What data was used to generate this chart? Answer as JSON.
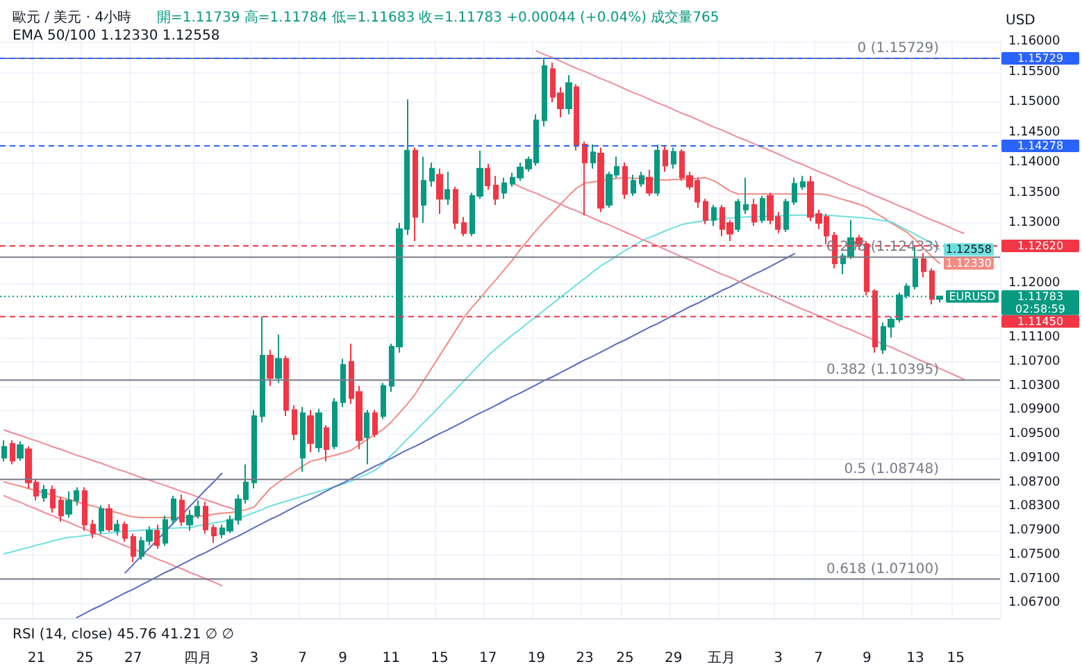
{
  "chart_data": {
    "type": "candlestick",
    "title": "歐元 / 美元 · 4小時",
    "subtitle": "開=1.11739 高=1.11784 低=1.11683 收=1.11783 +0.00044 (+0.04%) 成交量765",
    "ylabel": "USD",
    "annotations": [
      "EMA 50/100 1.12330 1.12558",
      "RSI (14, close) 45.76 41.21 ∅ ∅",
      {
        "text": "EURUSD",
        "y": 1.11783
      }
    ],
    "categories": [
      null,
      null,
      null,
      null,
      "21",
      null,
      null,
      null,
      null,
      null,
      "25",
      null,
      null,
      null,
      null,
      null,
      "27",
      null,
      null,
      null,
      null,
      null,
      null,
      null,
      "四月",
      null,
      null,
      null,
      null,
      null,
      null,
      "3",
      null,
      null,
      null,
      null,
      null,
      "7",
      null,
      null,
      null,
      null,
      "9",
      null,
      null,
      null,
      null,
      null,
      "11",
      null,
      null,
      null,
      null,
      null,
      "15",
      null,
      null,
      null,
      null,
      null,
      "17",
      null,
      null,
      null,
      null,
      null,
      "19",
      null,
      null,
      null,
      null,
      null,
      "23",
      null,
      null,
      null,
      null,
      "25",
      null,
      null,
      null,
      null,
      null,
      "29",
      null,
      null,
      null,
      null,
      null,
      "五月",
      null,
      null,
      null,
      null,
      null,
      null,
      "3",
      null,
      null,
      null,
      null,
      "7",
      null,
      null,
      null,
      null,
      null,
      "9",
      null,
      null,
      null,
      null,
      null,
      "13",
      null,
      null,
      null,
      null,
      "15",
      null,
      null,
      null,
      null,
      null
    ],
    "ohlc": [
      [
        1.0911,
        1.094,
        1.0905,
        1.0929
      ],
      [
        1.0934,
        1.094,
        1.09,
        1.0906
      ],
      [
        1.0911,
        1.0938,
        1.0906,
        1.0932
      ],
      [
        1.0925,
        1.093,
        1.086,
        1.087
      ],
      [
        1.087,
        1.0876,
        1.084,
        1.0848
      ],
      [
        1.0845,
        1.0866,
        1.0838,
        1.0858
      ],
      [
        1.0858,
        1.0865,
        1.082,
        1.0828
      ],
      [
        1.084,
        1.0846,
        1.0805,
        1.0815
      ],
      [
        1.0818,
        1.0855,
        1.0812,
        1.084
      ],
      [
        1.084,
        1.0862,
        1.0832,
        1.0856
      ],
      [
        1.0856,
        1.0862,
        1.079,
        1.08
      ],
      [
        1.08,
        1.0808,
        1.0778,
        1.0786
      ],
      [
        1.079,
        1.0832,
        1.0785,
        1.0826
      ],
      [
        1.0826,
        1.0834,
        1.0788,
        1.0792
      ],
      [
        1.079,
        1.0808,
        1.0782,
        1.08
      ],
      [
        1.08,
        1.0805,
        1.0772,
        1.0778
      ],
      [
        1.078,
        1.0785,
        1.0738,
        1.0748
      ],
      [
        1.0748,
        1.078,
        1.0742,
        1.0773
      ],
      [
        1.0773,
        1.0797,
        1.0766,
        1.079
      ],
      [
        1.079,
        1.08,
        1.076,
        1.0766
      ],
      [
        1.077,
        1.0815,
        1.0765,
        1.0808
      ],
      [
        1.0808,
        1.0848,
        1.08,
        1.0842
      ],
      [
        1.084,
        1.085,
        1.0798,
        1.0805
      ],
      [
        1.08,
        1.0825,
        1.079,
        1.0815
      ],
      [
        1.0815,
        1.084,
        1.081,
        1.083
      ],
      [
        1.083,
        1.0838,
        1.0785,
        1.0792
      ],
      [
        1.0795,
        1.08,
        1.077,
        1.0782
      ],
      [
        1.0784,
        1.08,
        1.0778,
        1.0794
      ],
      [
        1.079,
        1.0815,
        1.0786,
        1.0808
      ],
      [
        1.0808,
        1.085,
        1.08,
        1.0842
      ],
      [
        1.0842,
        1.09,
        1.0835,
        1.087
      ],
      [
        1.087,
        1.099,
        1.086,
        1.098
      ],
      [
        1.098,
        1.1145,
        1.097,
        1.108
      ],
      [
        1.108,
        1.109,
        1.103,
        1.1043
      ],
      [
        1.1043,
        1.1115,
        1.1035,
        1.1075
      ],
      [
        1.1075,
        1.108,
        1.098,
        1.099
      ],
      [
        1.099,
        1.0998,
        1.094,
        1.095
      ],
      [
        1.0911,
        1.0995,
        1.0888,
        1.0985
      ],
      [
        1.098,
        1.099,
        1.092,
        1.0935
      ],
      [
        1.0928,
        1.0992,
        1.092,
        1.0985
      ],
      [
        1.096,
        1.0965,
        1.0905,
        1.0925
      ],
      [
        1.093,
        1.101,
        1.0925,
        1.1003
      ],
      [
        1.1003,
        1.1075,
        1.0995,
        1.1065
      ],
      [
        1.107,
        1.11,
        1.1,
        1.101
      ],
      [
        1.102,
        1.103,
        1.0925,
        1.094
      ],
      [
        1.0945,
        1.099,
        1.09,
        1.0985
      ],
      [
        1.0985,
        1.099,
        1.0945,
        1.095
      ],
      [
        1.098,
        1.1035,
        1.0975,
        1.103
      ],
      [
        1.103,
        1.11,
        1.102,
        1.1095
      ],
      [
        1.1095,
        1.13,
        1.1085,
        1.129
      ],
      [
        1.129,
        1.1505,
        1.128,
        1.142
      ],
      [
        1.142,
        1.1425,
        1.127,
        1.131
      ],
      [
        1.133,
        1.141,
        1.13,
        1.137
      ],
      [
        1.137,
        1.14,
        1.136,
        1.139
      ],
      [
        1.138,
        1.139,
        1.1315,
        1.134
      ],
      [
        1.134,
        1.1385,
        1.133,
        1.1355
      ],
      [
        1.1355,
        1.136,
        1.129,
        1.13
      ],
      [
        1.13,
        1.131,
        1.1278,
        1.1283
      ],
      [
        1.1283,
        1.135,
        1.1278,
        1.1345
      ],
      [
        1.1345,
        1.142,
        1.134,
        1.139
      ],
      [
        1.139,
        1.1398,
        1.1355,
        1.1362
      ],
      [
        1.1362,
        1.1378,
        1.133,
        1.134
      ],
      [
        1.135,
        1.1375,
        1.134,
        1.1366
      ],
      [
        1.1365,
        1.1383,
        1.136,
        1.1375
      ],
      [
        1.1375,
        1.14,
        1.137,
        1.1392
      ],
      [
        1.139,
        1.141,
        1.1385,
        1.1405
      ],
      [
        1.14,
        1.148,
        1.1395,
        1.147
      ],
      [
        1.147,
        1.1573,
        1.146,
        1.156
      ],
      [
        1.1555,
        1.1566,
        1.15,
        1.1509
      ],
      [
        1.1515,
        1.1525,
        1.1475,
        1.149
      ],
      [
        1.149,
        1.1545,
        1.148,
        1.1532
      ],
      [
        1.1525,
        1.153,
        1.142,
        1.143
      ],
      [
        1.143,
        1.1435,
        1.1313,
        1.14
      ],
      [
        1.14,
        1.143,
        1.139,
        1.1417
      ],
      [
        1.1415,
        1.1425,
        1.1318,
        1.1325
      ],
      [
        1.133,
        1.1385,
        1.1325,
        1.138
      ],
      [
        1.138,
        1.141,
        1.1375,
        1.1393
      ],
      [
        1.1393,
        1.14,
        1.134,
        1.1348
      ],
      [
        1.135,
        1.138,
        1.1345,
        1.137
      ],
      [
        1.1365,
        1.1385,
        1.136,
        1.1378
      ],
      [
        1.1375,
        1.1388,
        1.1345,
        1.135
      ],
      [
        1.135,
        1.143,
        1.1345,
        1.142
      ],
      [
        1.142,
        1.1428,
        1.1385,
        1.1395
      ],
      [
        1.1398,
        1.1425,
        1.139,
        1.1418
      ],
      [
        1.1418,
        1.1422,
        1.137,
        1.1375
      ],
      [
        1.1378,
        1.1385,
        1.1355,
        1.136
      ],
      [
        1.137,
        1.1375,
        1.1325,
        1.1335
      ],
      [
        1.1335,
        1.134,
        1.1298,
        1.1305
      ],
      [
        1.1305,
        1.133,
        1.1295,
        1.1325
      ],
      [
        1.1325,
        1.133,
        1.1278,
        1.129
      ],
      [
        1.13,
        1.1305,
        1.127,
        1.1282
      ],
      [
        1.129,
        1.134,
        1.1285,
        1.1335
      ],
      [
        1.1322,
        1.1375,
        1.1315,
        1.133
      ],
      [
        1.133,
        1.134,
        1.1295,
        1.1302
      ],
      [
        1.1305,
        1.1345,
        1.13,
        1.134
      ],
      [
        1.1345,
        1.135,
        1.1298,
        1.1305
      ],
      [
        1.131,
        1.1318,
        1.1283,
        1.129
      ],
      [
        1.129,
        1.134,
        1.1285,
        1.1335
      ],
      [
        1.1335,
        1.1375,
        1.133,
        1.1365
      ],
      [
        1.136,
        1.1378,
        1.1355,
        1.1368
      ],
      [
        1.1368,
        1.1378,
        1.1303,
        1.131
      ],
      [
        1.1315,
        1.1322,
        1.129,
        1.13
      ],
      [
        1.131,
        1.1315,
        1.1265,
        1.1279
      ],
      [
        1.1279,
        1.1285,
        1.1225,
        1.1233
      ],
      [
        1.1233,
        1.125,
        1.1215,
        1.1245
      ],
      [
        1.1245,
        1.1305,
        1.124,
        1.1275
      ],
      [
        1.1275,
        1.128,
        1.1255,
        1.1265
      ],
      [
        1.1265,
        1.127,
        1.118,
        1.1187
      ],
      [
        1.1187,
        1.119,
        1.1085,
        1.1095
      ],
      [
        1.109,
        1.1135,
        1.1083,
        1.1128
      ],
      [
        1.1128,
        1.1145,
        1.111,
        1.114
      ],
      [
        1.114,
        1.1185,
        1.1135,
        1.118
      ],
      [
        1.118,
        1.12,
        1.1175,
        1.1195
      ],
      [
        1.1195,
        1.1262,
        1.119,
        1.124
      ],
      [
        1.124,
        1.125,
        1.121,
        1.122
      ],
      [
        1.122,
        1.1225,
        1.1165,
        1.1174
      ],
      [
        1.11739,
        1.11784,
        1.11683,
        1.11783
      ],
      null,
      null,
      null,
      null,
      null,
      null,
      null
    ],
    "colors": [
      "#089981",
      "#f23645",
      "#089981",
      "#f23645",
      "#f23645",
      "#089981",
      "#f23645",
      "#f23645",
      "#089981",
      "#089981",
      "#f23645",
      "#f23645",
      "#089981",
      "#f23645",
      "#089981",
      "#f23645",
      "#f23645",
      "#089981",
      "#089981",
      "#f23645",
      "#089981",
      "#089981",
      "#f23645",
      "#089981",
      "#089981",
      "#f23645",
      "#f23645",
      "#089981",
      "#089981",
      "#089981",
      "#089981",
      "#089981",
      "#089981",
      "#f23645",
      "#089981",
      "#f23645",
      "#f23645",
      "#089981",
      "#f23645",
      "#089981",
      "#f23645",
      "#089981",
      "#089981",
      "#f23645",
      "#f23645",
      "#089981",
      "#f23645",
      "#089981",
      "#089981",
      "#089981",
      "#089981",
      "#f23645",
      "#089981",
      "#089981",
      "#f23645",
      "#089981",
      "#f23645",
      "#f23645",
      "#089981",
      "#089981",
      "#f23645",
      "#f23645",
      "#089981",
      "#089981",
      "#089981",
      "#089981",
      "#089981",
      "#089981",
      "#f23645",
      "#f23645",
      "#089981",
      "#f23645",
      "#f23645",
      "#089981",
      "#f23645",
      "#089981",
      "#089981",
      "#f23645",
      "#089981",
      "#089981",
      "#f23645",
      "#089981",
      "#f23645",
      "#089981",
      "#f23645",
      "#f23645",
      "#f23645",
      "#f23645",
      "#089981",
      "#f23645",
      "#f23645",
      "#089981",
      "#089981",
      "#f23645",
      "#089981",
      "#f23645",
      "#f23645",
      "#089981",
      "#089981",
      "#089981",
      "#f23645",
      "#f23645",
      "#f23645",
      "#f23645",
      "#089981",
      "#089981",
      "#f23645",
      "#f23645",
      "#f23645",
      "#089981",
      "#089981",
      "#089981",
      "#089981",
      "#089981",
      "#f23645",
      "#f23645",
      "#089981",
      null,
      null,
      null,
      null,
      null,
      null,
      null
    ],
    "series": [
      {
        "type": "line",
        "color": "#f28b82",
        "values": [
          1.0871,
          1.0867,
          1.0864,
          1.086,
          1.0856,
          1.0853,
          1.0849,
          1.0845,
          1.0842,
          1.0838,
          1.0834,
          1.0831,
          1.0827,
          1.0823,
          1.082,
          1.0816,
          1.0813,
          1.0812,
          1.0812,
          1.0812,
          1.0812,
          1.0812,
          1.0812,
          1.0812,
          1.0814,
          1.0815,
          1.0817,
          1.0819,
          1.082,
          1.0822,
          1.0825,
          1.0829,
          1.0845,
          1.086,
          1.087,
          1.0879,
          1.0888,
          1.0897,
          1.0905,
          1.0908,
          1.0912,
          1.0915,
          1.0919,
          1.0923,
          1.0932,
          1.0941,
          1.095,
          1.0958,
          1.097,
          1.0985,
          1.1,
          1.1017,
          1.1038,
          1.1059,
          1.108,
          1.1101,
          1.1122,
          1.1143,
          1.116,
          1.1175,
          1.1191,
          1.1206,
          1.1222,
          1.1238,
          1.1256,
          1.1272,
          1.1288,
          1.1303,
          1.1317,
          1.1331,
          1.1345,
          1.1358,
          1.1366,
          1.1368,
          1.137,
          1.1372,
          1.1374,
          1.1375,
          1.1374,
          1.1374,
          1.1373,
          1.1372,
          1.1371,
          1.1372,
          1.1372,
          1.1373,
          1.1374,
          1.1375,
          1.137,
          1.1362,
          1.1353,
          1.1348,
          1.1348,
          1.1348,
          1.1348,
          1.1348,
          1.1348,
          1.1348,
          1.1348,
          1.1348,
          1.1348,
          1.1348,
          1.1347,
          1.1343,
          1.1339,
          1.1335,
          1.1331,
          1.1326,
          1.1317,
          1.1309,
          1.13,
          1.1292,
          1.1284,
          1.1272,
          1.1258,
          1.1245,
          1.1233,
          null,
          null,
          null,
          null,
          null,
          null,
          null
        ],
        "value_labels": [
          null,
          null,
          null,
          null,
          null,
          null,
          null,
          null,
          null,
          null,
          null,
          null,
          null,
          null,
          null,
          null,
          null,
          null,
          null,
          null,
          null,
          null,
          null,
          null,
          null,
          null,
          null,
          null,
          null,
          null,
          null,
          null,
          null,
          null,
          null,
          null,
          null,
          null,
          null,
          null,
          null,
          null,
          null,
          null,
          null,
          null,
          null,
          null,
          null,
          null,
          null,
          null,
          null,
          null,
          null,
          null,
          null,
          null,
          null,
          null,
          null,
          null,
          null,
          null,
          null,
          null,
          null,
          null,
          null,
          null,
          null,
          null,
          null,
          null,
          null,
          null,
          null,
          null,
          null,
          null,
          null,
          null,
          null,
          null,
          null,
          null,
          null,
          null,
          null,
          null,
          null,
          null,
          null,
          null,
          null,
          null,
          null,
          null,
          null,
          null,
          null,
          null,
          null,
          null,
          null,
          null,
          null,
          null,
          null,
          null,
          null,
          null,
          null,
          null,
          null,
          null,
          "1.12330",
          null,
          null,
          null,
          null,
          null,
          null,
          null
        ]
      },
      {
        "type": "line",
        "color": "#6fe0e0",
        "values": [
          1.0752,
          1.0755,
          1.0759,
          1.0762,
          1.0766,
          1.0769,
          1.0773,
          1.0776,
          1.0779,
          1.078,
          1.0782,
          1.0783,
          1.0785,
          1.0786,
          1.0788,
          1.0789,
          1.079,
          1.0791,
          1.0792,
          1.0793,
          1.0794,
          1.0794,
          1.0795,
          1.0795,
          1.0798,
          1.08,
          1.0803,
          1.0805,
          1.0808,
          1.0811,
          1.0815,
          1.082,
          1.0825,
          1.0831,
          1.0835,
          1.0839,
          1.0843,
          1.0847,
          1.0851,
          1.0855,
          1.0859,
          1.0863,
          1.0867,
          1.0872,
          1.0878,
          1.0884,
          1.089,
          1.0901,
          1.0915,
          1.0928,
          1.0942,
          1.0955,
          1.0969,
          1.0982,
          1.0996,
          1.101,
          1.1024,
          1.1038,
          1.1052,
          1.1066,
          1.108,
          1.1092,
          1.1103,
          1.1114,
          1.1124,
          1.1135,
          1.1145,
          1.1156,
          1.1166,
          1.1177,
          1.1187,
          1.1198,
          1.1208,
          1.1219,
          1.1229,
          1.1237,
          1.1246,
          1.1254,
          1.1262,
          1.127,
          1.1276,
          1.1281,
          1.1287,
          1.1292,
          1.1297,
          1.13,
          1.1302,
          1.1304,
          1.1306,
          1.1307,
          1.1308,
          1.1309,
          1.131,
          1.131,
          1.1311,
          1.1311,
          1.1312,
          1.1312,
          1.1313,
          1.1313,
          1.1313,
          1.1313,
          1.1313,
          1.1312,
          1.1311,
          1.131,
          1.1309,
          1.1308,
          1.1306,
          1.1304,
          1.1302,
          1.1295,
          1.1288,
          1.1281,
          1.1274,
          1.1266,
          1.12558,
          null,
          null,
          null,
          null,
          null,
          null,
          null
        ],
        "value_labels": [
          null,
          null,
          null,
          null,
          null,
          null,
          null,
          null,
          null,
          null,
          null,
          null,
          null,
          null,
          null,
          null,
          null,
          null,
          null,
          null,
          null,
          null,
          null,
          null,
          null,
          null,
          null,
          null,
          null,
          null,
          null,
          null,
          null,
          null,
          null,
          null,
          null,
          null,
          null,
          null,
          null,
          null,
          null,
          null,
          null,
          null,
          null,
          null,
          null,
          null,
          null,
          null,
          null,
          null,
          null,
          null,
          null,
          null,
          null,
          null,
          null,
          null,
          null,
          null,
          null,
          null,
          null,
          null,
          null,
          null,
          null,
          null,
          null,
          null,
          null,
          null,
          null,
          null,
          null,
          null,
          null,
          null,
          null,
          null,
          null,
          null,
          null,
          null,
          null,
          null,
          null,
          null,
          null,
          null,
          null,
          null,
          null,
          null,
          null,
          null,
          null,
          null,
          null,
          null,
          null,
          null,
          null,
          null,
          null,
          null,
          null,
          null,
          null,
          null,
          null,
          null,
          "1.12558",
          null,
          null,
          null,
          null,
          null,
          null,
          null
        ]
      },
      {
        "type": "line",
        "color": "#ef8a9a",
        "values": [
          1.0957,
          1.0952,
          1.0948,
          1.0943,
          1.0939,
          1.0934,
          1.0929,
          1.0925,
          1.092,
          1.0915,
          1.0911,
          1.0906,
          1.0902,
          1.0897,
          1.0892,
          1.0888,
          1.0883,
          1.0878,
          1.0874,
          1.0869,
          1.0865,
          1.086,
          1.0855,
          1.0851,
          1.0846,
          1.0841,
          1.0837,
          1.0832,
          1.0828,
          1.0823,
          null,
          null,
          null,
          null,
          null,
          null,
          null,
          null,
          null,
          null,
          null,
          null,
          null,
          null,
          null,
          null,
          null,
          null,
          null,
          null,
          null,
          null,
          null,
          null,
          null,
          null,
          null,
          null,
          null,
          null,
          null,
          null,
          null,
          null,
          null,
          null,
          null,
          null,
          null,
          null,
          null,
          null,
          null,
          null,
          null,
          null,
          null,
          null,
          null,
          null,
          null,
          null,
          null,
          null,
          null,
          null,
          null,
          null,
          null,
          null,
          null,
          null,
          null,
          null,
          null,
          null,
          null,
          null,
          null,
          null,
          null,
          null,
          null,
          null,
          null,
          null,
          null,
          null,
          null,
          null,
          null,
          null,
          null,
          null,
          null,
          null,
          null,
          null,
          null,
          null,
          null,
          null,
          null,
          null
        ]
      },
      {
        "type": "line",
        "color": "#ef8a9a",
        "values": [
          1.0848,
          1.0842,
          1.0837,
          1.0831,
          1.0826,
          1.082,
          1.0815,
          1.0809,
          1.0804,
          1.0798,
          1.0793,
          1.0787,
          1.0782,
          1.0776,
          1.0771,
          1.0765,
          1.076,
          1.0754,
          1.0749,
          1.0743,
          1.0738,
          1.0732,
          1.0727,
          1.0721,
          1.0716,
          1.071,
          1.0705,
          1.0699,
          null,
          null,
          null,
          null,
          null,
          null,
          null,
          null,
          null,
          null,
          null,
          null,
          null,
          null,
          null,
          null,
          null,
          null,
          null,
          null,
          null,
          null,
          null,
          null,
          null,
          null,
          null,
          null,
          null,
          null,
          null,
          null,
          null,
          null,
          null,
          null,
          null,
          null,
          null,
          null,
          null,
          null,
          null,
          null,
          null,
          null,
          null,
          null,
          null,
          null,
          null,
          null,
          null,
          null,
          null,
          null,
          null,
          null,
          null,
          null,
          null,
          null,
          null,
          null,
          null,
          null,
          null,
          null,
          null,
          null,
          null,
          null,
          null,
          null,
          null,
          null,
          null,
          null,
          null,
          null,
          null,
          null,
          null,
          null,
          null,
          null,
          null,
          null,
          null,
          null,
          null,
          null,
          null,
          null,
          null,
          null
        ]
      },
      {
        "type": "line",
        "color": "#5c6bc0",
        "values": [
          null,
          null,
          null,
          null,
          null,
          null,
          null,
          null,
          null,
          null,
          null,
          null,
          null,
          null,
          null,
          1.072,
          1.0734,
          1.0748,
          1.0761,
          1.0775,
          1.0789,
          1.0803,
          1.0816,
          1.083,
          1.0844,
          1.0858,
          1.0871,
          1.0885,
          null,
          null,
          null,
          null,
          null,
          null,
          null,
          null,
          null,
          null,
          null,
          null,
          null,
          null,
          null,
          null,
          null,
          null,
          null,
          null,
          null,
          null,
          null,
          null,
          null,
          null,
          null,
          null,
          null,
          null,
          null,
          null,
          null,
          null,
          null,
          null,
          null,
          null,
          null,
          null,
          null,
          null,
          null,
          null,
          null,
          null,
          null,
          null,
          null,
          null,
          null,
          null,
          null,
          null,
          null,
          null,
          null,
          null,
          null,
          null,
          null,
          null,
          null,
          null,
          null,
          null,
          null,
          null,
          null,
          null,
          null,
          null,
          null,
          null,
          null,
          null,
          null,
          null,
          null,
          null,
          null,
          null,
          null,
          null,
          null,
          null,
          null,
          null,
          null,
          null,
          null,
          null,
          null,
          null,
          null,
          null
        ]
      },
      {
        "type": "line",
        "color": "#5c6bc0",
        "values": [
          null,
          null,
          null,
          null,
          null,
          null,
          null,
          null,
          null,
          1.0646,
          1.0653,
          1.066,
          1.0666,
          1.0673,
          1.068,
          1.0687,
          1.0693,
          1.07,
          1.0707,
          1.0714,
          1.0721,
          1.0727,
          1.0734,
          1.0741,
          1.0748,
          1.0754,
          1.0761,
          1.0768,
          1.0775,
          1.0781,
          1.0788,
          1.0795,
          1.0802,
          1.0809,
          1.0815,
          1.0822,
          1.0829,
          1.0836,
          1.0842,
          1.0849,
          1.0856,
          1.0863,
          1.0869,
          1.0876,
          1.0883,
          1.089,
          1.0897,
          1.0903,
          1.091,
          1.0917,
          1.0924,
          1.093,
          1.0937,
          1.0944,
          1.0951,
          1.0957,
          1.0964,
          1.0971,
          1.0978,
          1.0985,
          1.0991,
          1.0998,
          1.1005,
          1.1012,
          1.1018,
          1.1025,
          1.1032,
          1.1039,
          1.1045,
          1.1052,
          1.1059,
          1.1066,
          1.1073,
          1.1079,
          1.1086,
          1.1093,
          1.11,
          1.1106,
          1.1113,
          1.112,
          1.1127,
          1.1133,
          1.114,
          1.1147,
          1.1154,
          1.1161,
          1.1167,
          1.1174,
          1.1181,
          1.1188,
          1.1194,
          1.1201,
          1.1208,
          1.1215,
          1.1221,
          1.1228,
          1.1235,
          1.1242,
          1.1249,
          null,
          null,
          null,
          null,
          null,
          null,
          null,
          null,
          null,
          null,
          null,
          null,
          null,
          null,
          null,
          null,
          null,
          null,
          null,
          null,
          null,
          null,
          null,
          null,
          null
        ]
      },
      {
        "type": "line",
        "color": "#ef8a9a",
        "values": [
          null,
          null,
          null,
          null,
          null,
          null,
          null,
          null,
          null,
          null,
          null,
          null,
          null,
          null,
          null,
          null,
          null,
          null,
          null,
          null,
          null,
          null,
          null,
          null,
          null,
          null,
          null,
          null,
          null,
          null,
          null,
          null,
          null,
          null,
          null,
          null,
          null,
          null,
          null,
          null,
          null,
          null,
          null,
          null,
          null,
          null,
          null,
          null,
          null,
          null,
          null,
          null,
          null,
          null,
          null,
          null,
          null,
          null,
          null,
          null,
          null,
          null,
          null,
          null,
          null,
          null,
          1.1585,
          1.1579,
          1.1574,
          1.1568,
          1.1562,
          1.1556,
          1.1551,
          1.1545,
          1.1539,
          1.1534,
          1.1528,
          1.1522,
          1.1516,
          1.1511,
          1.1505,
          1.1499,
          1.1494,
          1.1488,
          1.1482,
          1.1477,
          1.1471,
          1.1465,
          1.1459,
          1.1454,
          1.1448,
          1.1442,
          1.1437,
          1.1431,
          1.1425,
          1.142,
          1.1414,
          1.1408,
          1.1402,
          1.1397,
          1.1391,
          1.1385,
          1.138,
          1.1374,
          1.1368,
          1.1362,
          1.1357,
          1.1351,
          1.1345,
          1.134,
          1.1334,
          1.1328,
          1.1323,
          1.1317,
          1.1311,
          1.1305,
          1.13,
          1.1294,
          1.1288,
          1.1283,
          null,
          null,
          null,
          null
        ]
      },
      {
        "type": "line",
        "color": "#ef8a9a",
        "values": [
          null,
          null,
          null,
          null,
          null,
          null,
          null,
          null,
          null,
          null,
          null,
          null,
          null,
          null,
          null,
          null,
          null,
          null,
          null,
          null,
          null,
          null,
          null,
          null,
          null,
          null,
          null,
          null,
          null,
          null,
          null,
          null,
          null,
          null,
          null,
          null,
          null,
          null,
          null,
          null,
          null,
          null,
          null,
          null,
          null,
          null,
          null,
          null,
          null,
          null,
          null,
          null,
          null,
          null,
          null,
          null,
          null,
          null,
          null,
          null,
          null,
          null,
          null,
          1.1366,
          1.136,
          1.1354,
          1.1349,
          1.1343,
          1.1337,
          1.1331,
          1.1325,
          1.132,
          1.1314,
          1.1308,
          1.1302,
          1.1297,
          1.1291,
          1.1285,
          1.1279,
          1.1273,
          1.1268,
          1.1262,
          1.1256,
          1.125,
          1.1244,
          1.1239,
          1.1233,
          1.1227,
          1.1221,
          1.1215,
          1.121,
          1.1204,
          1.1198,
          1.1192,
          1.1186,
          1.1181,
          1.1175,
          1.1169,
          1.1163,
          1.1157,
          1.1152,
          1.1146,
          1.114,
          1.1134,
          1.1128,
          1.1123,
          1.1117,
          1.1111,
          1.1105,
          1.1099,
          1.1094,
          1.1088,
          1.1082,
          1.1076,
          1.107,
          1.1065,
          1.1059,
          1.1053,
          1.1047,
          1.1041,
          null,
          null,
          null,
          null
        ]
      }
    ],
    "ref_lines": [
      {
        "axis": "y",
        "value": 1.15729,
        "label": "0 (1.15729)",
        "color": "#787b86",
        "line_style": "solid"
      },
      {
        "axis": "y",
        "value": 1.15729,
        "label": "1.15729",
        "color": "#2962ff",
        "line_style": "dashed"
      },
      {
        "axis": "y",
        "value": 1.14278,
        "label": "1.14278",
        "color": "#2962ff",
        "line_style": "dashed"
      },
      {
        "axis": "y",
        "value": 1.1262,
        "label": "1.12620",
        "color": "#f23645",
        "line_style": "dashed"
      },
      {
        "axis": "y",
        "value": 1.12433,
        "label": "0.236 (1.12433)",
        "color": "#787b86",
        "line_style": "solid"
      },
      {
        "axis": "y",
        "value": 1.11783,
        "label": "1.11783\n02:58:59",
        "color": "#089981",
        "line_style": "dotted"
      },
      {
        "axis": "y",
        "value": 1.1145,
        "label": "1.11450",
        "color": "#f23645",
        "line_style": "dashed"
      },
      {
        "axis": "y",
        "value": 1.10395,
        "label": "0.382 (1.10395)",
        "color": "#787b86",
        "line_style": "solid"
      },
      {
        "axis": "y",
        "value": 1.08748,
        "label": "0.5 (1.08748)",
        "color": "#787b86",
        "line_style": "solid"
      },
      {
        "axis": "y",
        "value": 1.071,
        "label": "0.618 (1.07100)",
        "color": "#787b86",
        "line_style": "solid"
      }
    ],
    "ylim": [
      1.0645,
      1.1605
    ],
    "yticks": [
      {
        "value": 1.16,
        "label": "1.16000"
      },
      {
        "value": 1.155,
        "label": "1.15500"
      },
      {
        "value": 1.15,
        "label": "1.15000"
      },
      {
        "value": 1.145,
        "label": "1.14500"
      },
      {
        "value": 1.14,
        "label": "1.14000"
      },
      {
        "value": 1.135,
        "label": "1.13500"
      },
      {
        "value": 1.13,
        "label": "1.13000"
      },
      {
        "value": 1.12,
        "label": "1.12000"
      },
      {
        "value": 1.111,
        "label": "1.11100"
      },
      {
        "value": 1.107,
        "label": "1.10700"
      },
      {
        "value": 1.103,
        "label": "1.10300"
      },
      {
        "value": 1.099,
        "label": "1.09900"
      },
      {
        "value": 1.095,
        "label": "1.09500"
      },
      {
        "value": 1.091,
        "label": "1.09100"
      },
      {
        "value": 1.087,
        "label": "1.08700"
      },
      {
        "value": 1.083,
        "label": "1.08300"
      },
      {
        "value": 1.079,
        "label": "1.07900"
      },
      {
        "value": 1.075,
        "label": "1.07500"
      },
      {
        "value": 1.071,
        "label": "1.07100"
      },
      {
        "value": 1.067,
        "label": "1.06700"
      }
    ],
    "grid": true,
    "marker": "none"
  }
}
